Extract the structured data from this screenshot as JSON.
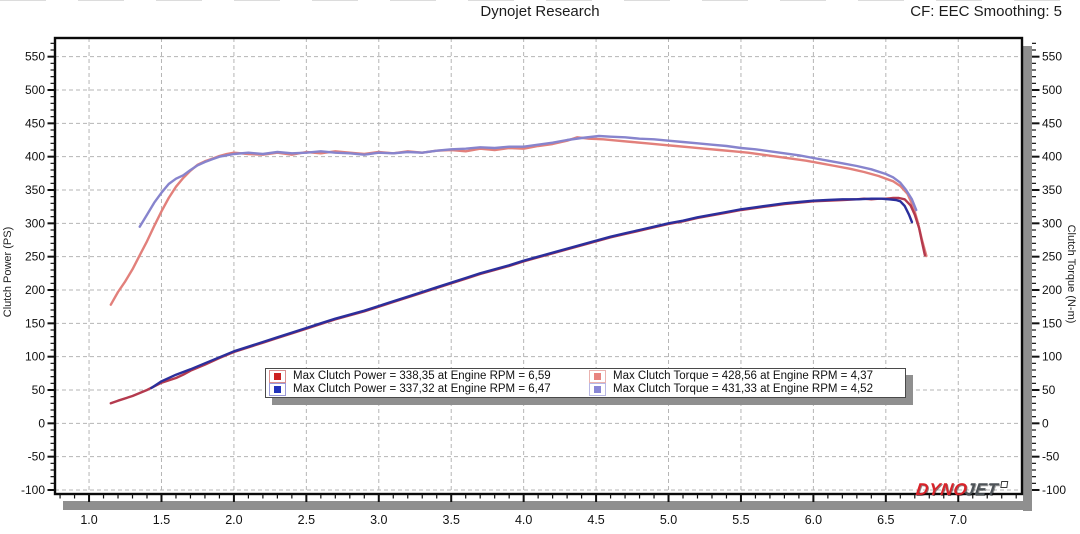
{
  "header": {
    "title": "Dynojet Research",
    "right_note": "CF: EEC Smoothing: 5"
  },
  "branding": {
    "logo_dyno": "DYNO",
    "logo_jet": "JET"
  },
  "chart_data": {
    "type": "line",
    "title": "Dynojet Research",
    "xlabel": "",
    "ylabel_left": "Clutch Power (PS)",
    "ylabel_right": "Clutch Torque (N-m)",
    "xlim": [
      0.765,
      7.44
    ],
    "ylim": [
      -106,
      578
    ],
    "x_ticks": [
      1.0,
      1.5,
      2.0,
      2.5,
      3.0,
      3.5,
      4.0,
      4.5,
      5.0,
      5.5,
      6.0,
      6.5,
      7.0
    ],
    "x_minor_step": 0.1,
    "y_ticks": [
      -100,
      -50,
      0,
      50,
      100,
      150,
      200,
      250,
      300,
      350,
      400,
      450,
      500,
      550
    ],
    "y_minor_step": 10,
    "grid_style": "dashed",
    "colors": {
      "grid": "#b5b5b5",
      "frame": "#0a0a0a",
      "shadow": "#8f8f8f"
    },
    "series": [
      {
        "name": "clutch-torque-run1",
        "color": "#e2807b",
        "axis": "right",
        "unit": "N-m",
        "points": [
          [
            1.15,
            178
          ],
          [
            1.2,
            197
          ],
          [
            1.25,
            213
          ],
          [
            1.3,
            231
          ],
          [
            1.35,
            252
          ],
          [
            1.4,
            273
          ],
          [
            1.45,
            296
          ],
          [
            1.5,
            318
          ],
          [
            1.55,
            338
          ],
          [
            1.6,
            355
          ],
          [
            1.65,
            368
          ],
          [
            1.7,
            379
          ],
          [
            1.75,
            388
          ],
          [
            1.8,
            393
          ],
          [
            1.85,
            397
          ],
          [
            1.9,
            401
          ],
          [
            1.95,
            404
          ],
          [
            2.0,
            406
          ],
          [
            2.1,
            404
          ],
          [
            2.2,
            403
          ],
          [
            2.3,
            406
          ],
          [
            2.4,
            403
          ],
          [
            2.5,
            407
          ],
          [
            2.6,
            405
          ],
          [
            2.7,
            408
          ],
          [
            2.8,
            406
          ],
          [
            2.9,
            404
          ],
          [
            3.0,
            407
          ],
          [
            3.1,
            405
          ],
          [
            3.2,
            408
          ],
          [
            3.3,
            406
          ],
          [
            3.4,
            409
          ],
          [
            3.5,
            410
          ],
          [
            3.6,
            408
          ],
          [
            3.7,
            412
          ],
          [
            3.8,
            410
          ],
          [
            3.9,
            413
          ],
          [
            4.0,
            412
          ],
          [
            4.1,
            416
          ],
          [
            4.2,
            419
          ],
          [
            4.3,
            424
          ],
          [
            4.37,
            429
          ],
          [
            4.45,
            427
          ],
          [
            4.55,
            426
          ],
          [
            4.65,
            424
          ],
          [
            4.75,
            422
          ],
          [
            4.85,
            420
          ],
          [
            4.95,
            418
          ],
          [
            5.05,
            416
          ],
          [
            5.15,
            414
          ],
          [
            5.25,
            412
          ],
          [
            5.35,
            410
          ],
          [
            5.45,
            408
          ],
          [
            5.55,
            406
          ],
          [
            5.65,
            403
          ],
          [
            5.75,
            400
          ],
          [
            5.85,
            397
          ],
          [
            5.95,
            394
          ],
          [
            6.05,
            390
          ],
          [
            6.15,
            386
          ],
          [
            6.25,
            382
          ],
          [
            6.35,
            377
          ],
          [
            6.45,
            371
          ],
          [
            6.55,
            363
          ],
          [
            6.6,
            356
          ],
          [
            6.65,
            344
          ],
          [
            6.69,
            325
          ],
          [
            6.72,
            302
          ],
          [
            6.75,
            275
          ],
          [
            6.78,
            251
          ]
        ]
      },
      {
        "name": "clutch-torque-run2",
        "color": "#8784cd",
        "axis": "right",
        "unit": "N-m",
        "points": [
          [
            1.35,
            295
          ],
          [
            1.4,
            313
          ],
          [
            1.45,
            331
          ],
          [
            1.5,
            346
          ],
          [
            1.55,
            359
          ],
          [
            1.6,
            367
          ],
          [
            1.65,
            372
          ],
          [
            1.7,
            380
          ],
          [
            1.75,
            387
          ],
          [
            1.8,
            392
          ],
          [
            1.85,
            396
          ],
          [
            1.9,
            400
          ],
          [
            1.95,
            402
          ],
          [
            2.0,
            404
          ],
          [
            2.1,
            406
          ],
          [
            2.2,
            404
          ],
          [
            2.3,
            407
          ],
          [
            2.4,
            405
          ],
          [
            2.5,
            406
          ],
          [
            2.6,
            408
          ],
          [
            2.7,
            406
          ],
          [
            2.8,
            405
          ],
          [
            2.9,
            403
          ],
          [
            3.0,
            406
          ],
          [
            3.1,
            405
          ],
          [
            3.2,
            407
          ],
          [
            3.3,
            406
          ],
          [
            3.4,
            409
          ],
          [
            3.5,
            411
          ],
          [
            3.6,
            412
          ],
          [
            3.7,
            414
          ],
          [
            3.8,
            413
          ],
          [
            3.9,
            415
          ],
          [
            4.0,
            415
          ],
          [
            4.1,
            418
          ],
          [
            4.2,
            421
          ],
          [
            4.3,
            425
          ],
          [
            4.4,
            428
          ],
          [
            4.52,
            431
          ],
          [
            4.6,
            430
          ],
          [
            4.7,
            429
          ],
          [
            4.8,
            427
          ],
          [
            4.9,
            426
          ],
          [
            5.0,
            424
          ],
          [
            5.1,
            422
          ],
          [
            5.2,
            420
          ],
          [
            5.3,
            418
          ],
          [
            5.4,
            416
          ],
          [
            5.5,
            413
          ],
          [
            5.6,
            411
          ],
          [
            5.7,
            408
          ],
          [
            5.8,
            405
          ],
          [
            5.9,
            402
          ],
          [
            6.0,
            398
          ],
          [
            6.1,
            394
          ],
          [
            6.2,
            390
          ],
          [
            6.3,
            386
          ],
          [
            6.4,
            381
          ],
          [
            6.5,
            374
          ],
          [
            6.55,
            369
          ],
          [
            6.6,
            361
          ],
          [
            6.64,
            350
          ],
          [
            6.68,
            336
          ],
          [
            6.71,
            320
          ]
        ]
      },
      {
        "name": "clutch-power-run1",
        "color": "#b43a4e",
        "axis": "left",
        "unit": "PS",
        "points": [
          [
            1.15,
            30
          ],
          [
            1.2,
            34
          ],
          [
            1.3,
            41
          ],
          [
            1.4,
            50
          ],
          [
            1.5,
            61
          ],
          [
            1.6,
            68
          ],
          [
            1.65,
            73
          ],
          [
            1.7,
            79
          ],
          [
            1.8,
            88
          ],
          [
            1.9,
            98
          ],
          [
            2.0,
            107
          ],
          [
            2.1,
            114
          ],
          [
            2.2,
            121
          ],
          [
            2.3,
            128
          ],
          [
            2.4,
            135
          ],
          [
            2.5,
            142
          ],
          [
            2.6,
            149
          ],
          [
            2.7,
            156
          ],
          [
            2.8,
            162
          ],
          [
            2.9,
            168
          ],
          [
            3.0,
            175
          ],
          [
            3.1,
            182
          ],
          [
            3.2,
            189
          ],
          [
            3.3,
            196
          ],
          [
            3.4,
            203
          ],
          [
            3.5,
            210
          ],
          [
            3.6,
            217
          ],
          [
            3.7,
            224
          ],
          [
            3.8,
            230
          ],
          [
            3.9,
            236
          ],
          [
            4.0,
            243
          ],
          [
            4.1,
            249
          ],
          [
            4.2,
            255
          ],
          [
            4.3,
            261
          ],
          [
            4.4,
            267
          ],
          [
            4.5,
            273
          ],
          [
            4.6,
            279
          ],
          [
            4.7,
            284
          ],
          [
            4.8,
            289
          ],
          [
            4.9,
            294
          ],
          [
            5.0,
            299
          ],
          [
            5.1,
            303
          ],
          [
            5.2,
            308
          ],
          [
            5.3,
            312
          ],
          [
            5.4,
            316
          ],
          [
            5.5,
            320
          ],
          [
            5.6,
            323
          ],
          [
            5.7,
            326
          ],
          [
            5.8,
            329
          ],
          [
            5.9,
            331
          ],
          [
            6.0,
            333
          ],
          [
            6.1,
            334
          ],
          [
            6.2,
            335
          ],
          [
            6.3,
            336
          ],
          [
            6.35,
            337
          ],
          [
            6.4,
            336
          ],
          [
            6.45,
            337
          ],
          [
            6.5,
            337
          ],
          [
            6.55,
            338
          ],
          [
            6.59,
            338
          ],
          [
            6.63,
            336
          ],
          [
            6.67,
            327
          ],
          [
            6.7,
            313
          ],
          [
            6.73,
            293
          ],
          [
            6.75,
            272
          ],
          [
            6.77,
            252
          ]
        ]
      },
      {
        "name": "clutch-power-run2",
        "color": "#2b2f9c",
        "axis": "left",
        "unit": "PS",
        "points": [
          [
            1.43,
            53
          ],
          [
            1.5,
            63
          ],
          [
            1.6,
            73
          ],
          [
            1.7,
            81
          ],
          [
            1.8,
            90
          ],
          [
            1.9,
            99
          ],
          [
            2.0,
            108
          ],
          [
            2.1,
            115
          ],
          [
            2.2,
            122
          ],
          [
            2.3,
            129
          ],
          [
            2.4,
            136
          ],
          [
            2.5,
            143
          ],
          [
            2.6,
            150
          ],
          [
            2.7,
            157
          ],
          [
            2.8,
            163
          ],
          [
            2.9,
            169
          ],
          [
            3.0,
            176
          ],
          [
            3.1,
            183
          ],
          [
            3.2,
            190
          ],
          [
            3.3,
            197
          ],
          [
            3.4,
            204
          ],
          [
            3.5,
            211
          ],
          [
            3.6,
            218
          ],
          [
            3.7,
            225
          ],
          [
            3.8,
            231
          ],
          [
            3.9,
            237
          ],
          [
            4.0,
            244
          ],
          [
            4.1,
            250
          ],
          [
            4.2,
            256
          ],
          [
            4.3,
            262
          ],
          [
            4.4,
            268
          ],
          [
            4.5,
            274
          ],
          [
            4.6,
            280
          ],
          [
            4.7,
            285
          ],
          [
            4.8,
            290
          ],
          [
            4.9,
            295
          ],
          [
            5.0,
            300
          ],
          [
            5.1,
            304
          ],
          [
            5.2,
            309
          ],
          [
            5.3,
            313
          ],
          [
            5.4,
            317
          ],
          [
            5.5,
            321
          ],
          [
            5.6,
            324
          ],
          [
            5.7,
            327
          ],
          [
            5.8,
            330
          ],
          [
            5.9,
            332
          ],
          [
            6.0,
            334
          ],
          [
            6.1,
            335
          ],
          [
            6.2,
            336
          ],
          [
            6.3,
            336
          ],
          [
            6.4,
            337
          ],
          [
            6.47,
            337
          ],
          [
            6.52,
            336
          ],
          [
            6.57,
            335
          ],
          [
            6.6,
            333
          ],
          [
            6.63,
            326
          ],
          [
            6.66,
            313
          ],
          [
            6.68,
            302
          ]
        ]
      }
    ],
    "legend": {
      "position": "bottom-center",
      "entries": [
        {
          "swatch_fill": "#cc2222",
          "swatch_border": "#d98f8f",
          "label": "Max Clutch Power = 338,35 at Engine RPM = 6,59"
        },
        {
          "swatch_fill": "#e88480",
          "swatch_border": "#eab3b0",
          "label": "Max Clutch Torque = 428,56 at Engine RPM = 4,37"
        },
        {
          "swatch_fill": "#2233bb",
          "swatch_border": "#9b99d8",
          "label": "Max Clutch Power = 337,32 at Engine RPM = 6,47"
        },
        {
          "swatch_fill": "#8886d6",
          "swatch_border": "#b9b8e4",
          "label": "Max Clutch Torque = 431,33 at Engine RPM = 4,52"
        }
      ]
    }
  }
}
